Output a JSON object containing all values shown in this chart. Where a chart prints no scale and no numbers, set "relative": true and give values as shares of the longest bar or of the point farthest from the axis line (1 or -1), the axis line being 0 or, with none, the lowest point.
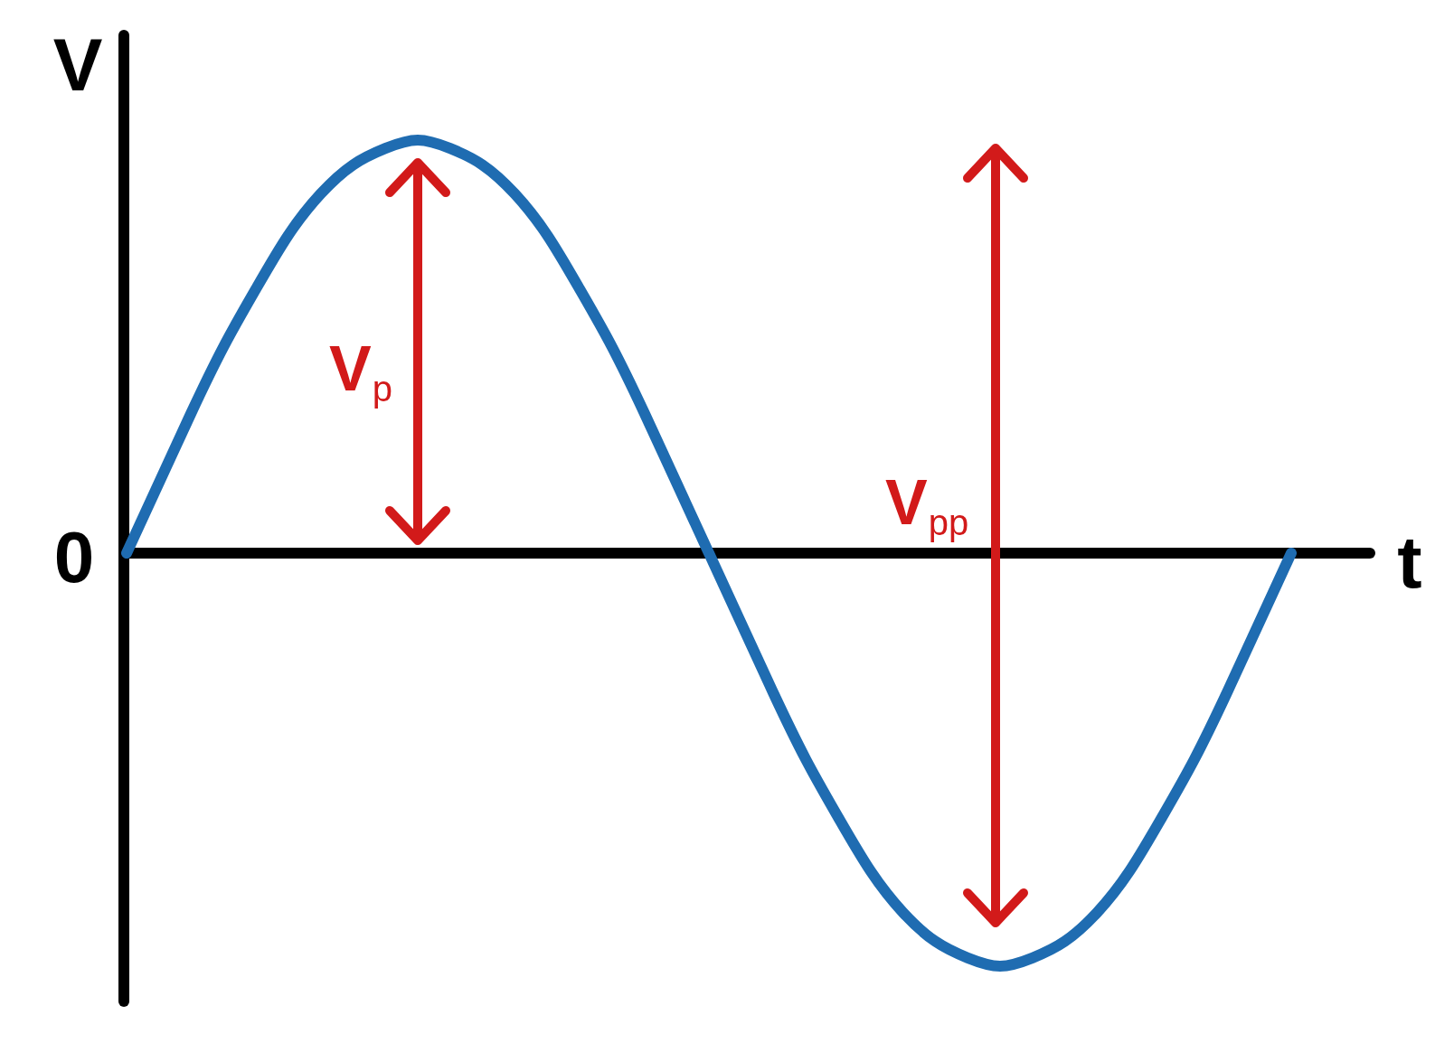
{
  "chart_data": {
    "type": "line",
    "relative": true,
    "xlabel": "t",
    "ylabel": "V",
    "categories": [
      null,
      null,
      null,
      null,
      null,
      null,
      null,
      null,
      null,
      null,
      null,
      null,
      null,
      null,
      null,
      null,
      null,
      null,
      null,
      null,
      null,
      null,
      null,
      null,
      null,
      null,
      null,
      null,
      null,
      null,
      null,
      null,
      null,
      null,
      null,
      null,
      null
    ],
    "values": [
      0,
      0.17,
      0.34,
      0.5,
      0.64,
      0.77,
      0.87,
      0.94,
      0.98,
      1,
      0.98,
      0.94,
      0.87,
      0.77,
      0.64,
      0.5,
      0.34,
      0.17,
      0,
      -0.17,
      -0.34,
      -0.5,
      -0.64,
      -0.77,
      -0.87,
      -0.94,
      -0.98,
      -1,
      -0.98,
      -0.94,
      -0.87,
      -0.77,
      -0.64,
      -0.5,
      -0.34,
      -0.17,
      0
    ],
    "color": "#1f6cb1",
    "annotations": [
      "V$_{p}$",
      "V$_{pp}$",
      "0"
    ]
  }
}
